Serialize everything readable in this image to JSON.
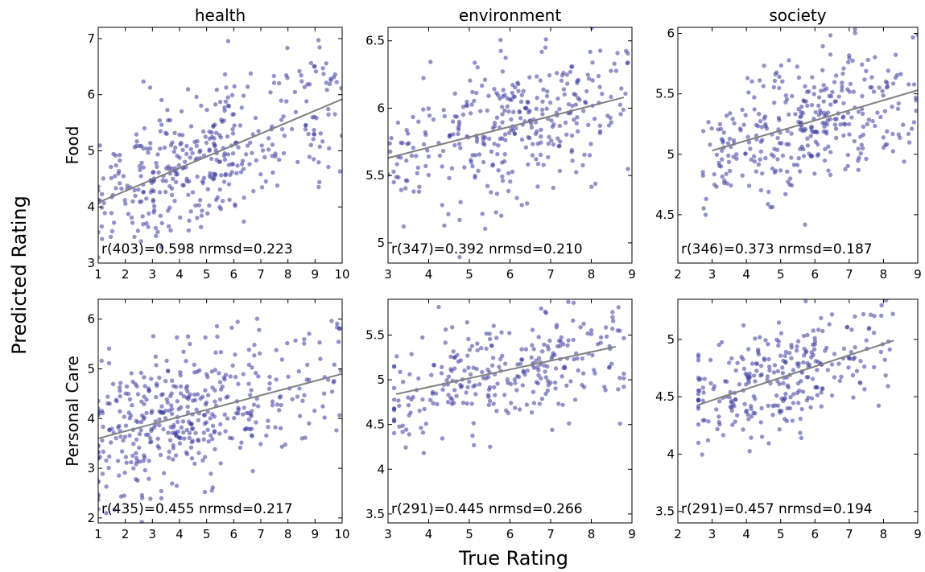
{
  "figure": {
    "ylabel": "Predicted Rating",
    "xlabel": "True Rating",
    "col_titles": [
      "health",
      "environment",
      "society"
    ],
    "row_labels": [
      "Food",
      "Personal Care"
    ]
  },
  "colors": {
    "point": "#3a3a9c",
    "fit_line": "#808080",
    "axis": "#000000"
  },
  "chart_data": [
    {
      "type": "scatter",
      "category": "Food",
      "dimension": "health",
      "xlim": [
        1,
        10
      ],
      "ylim": [
        3,
        7.2
      ],
      "xticks": [
        1,
        2,
        3,
        4,
        5,
        6,
        7,
        8,
        9,
        10
      ],
      "yticks": [
        3,
        4,
        5,
        6,
        7
      ],
      "fit": {
        "x": [
          1,
          10
        ],
        "y": [
          4.08,
          5.92
        ]
      },
      "annotation": "r(403)=0.598   nrmsd=0.223",
      "points": {
        "n": 403,
        "x_range": [
          1,
          10
        ],
        "x_center": 4.5,
        "x_spread": 2.0,
        "y_noise": 0.62,
        "seed": 11
      }
    },
    {
      "type": "scatter",
      "category": "Food",
      "dimension": "environment",
      "xlim": [
        3,
        9
      ],
      "ylim": [
        4.85,
        6.6
      ],
      "xticks": [
        3,
        4,
        5,
        6,
        7,
        8,
        9
      ],
      "yticks": [
        5.0,
        5.5,
        6.0,
        6.5
      ],
      "fit": {
        "x": [
          3,
          8.8
        ],
        "y": [
          5.63,
          6.08
        ]
      },
      "annotation": "r(347)=0.392   nrmsd=0.210",
      "points": {
        "n": 347,
        "x_range": [
          3,
          8.9
        ],
        "x_center": 6.2,
        "x_spread": 1.1,
        "y_noise": 0.24,
        "seed": 23
      }
    },
    {
      "type": "scatter",
      "category": "Food",
      "dimension": "society",
      "xlim": [
        2,
        9
      ],
      "ylim": [
        4.1,
        6.05
      ],
      "xticks": [
        2,
        3,
        4,
        5,
        6,
        7,
        8,
        9
      ],
      "yticks": [
        4.5,
        5.0,
        5.5,
        6.0
      ],
      "fit": {
        "x": [
          3,
          9
        ],
        "y": [
          5.03,
          5.53
        ]
      },
      "annotation": "r(346)=0.373   nrmsd=0.187",
      "points": {
        "n": 346,
        "x_range": [
          2.7,
          9
        ],
        "x_center": 5.8,
        "x_spread": 1.2,
        "y_noise": 0.27,
        "seed": 37
      }
    },
    {
      "type": "scatter",
      "category": "Personal Care",
      "dimension": "health",
      "xlim": [
        1,
        10
      ],
      "ylim": [
        1.9,
        6.4
      ],
      "xticks": [
        1,
        2,
        3,
        4,
        5,
        6,
        7,
        8,
        9,
        10
      ],
      "yticks": [
        2,
        3,
        4,
        5,
        6
      ],
      "fit": {
        "x": [
          1,
          10
        ],
        "y": [
          3.6,
          4.9
        ]
      },
      "annotation": "r(435)=0.455   nrmsd=0.217",
      "points": {
        "n": 435,
        "x_range": [
          1,
          10
        ],
        "x_center": 4.0,
        "x_spread": 2.0,
        "y_noise": 0.72,
        "seed": 53
      }
    },
    {
      "type": "scatter",
      "category": "Personal Care",
      "dimension": "environment",
      "xlim": [
        3,
        9
      ],
      "ylim": [
        3.4,
        5.9
      ],
      "xticks": [
        3,
        4,
        5,
        6,
        7,
        8,
        9
      ],
      "yticks": [
        3.5,
        4.0,
        4.5,
        5.0,
        5.5
      ],
      "fit": {
        "x": [
          3.2,
          8.6
        ],
        "y": [
          4.84,
          5.37
        ]
      },
      "annotation": "r(291)=0.445   nrmsd=0.266",
      "points": {
        "n": 291,
        "x_range": [
          3.15,
          8.8
        ],
        "x_center": 5.6,
        "x_spread": 1.5,
        "y_noise": 0.3,
        "seed": 71
      }
    },
    {
      "type": "scatter",
      "category": "Personal Care",
      "dimension": "society",
      "xlim": [
        2,
        9
      ],
      "ylim": [
        3.4,
        5.35
      ],
      "xticks": [
        2,
        3,
        4,
        5,
        6,
        7,
        8,
        9
      ],
      "yticks": [
        3.5,
        4.0,
        4.5,
        5.0
      ],
      "fit": {
        "x": [
          2.6,
          8.3
        ],
        "y": [
          4.43,
          4.99
        ]
      },
      "annotation": "r(291)=0.457   nrmsd=0.194",
      "points": {
        "n": 291,
        "x_range": [
          2.6,
          8.3
        ],
        "x_center": 4.6,
        "x_spread": 1.3,
        "y_noise": 0.23,
        "seed": 89
      }
    }
  ]
}
